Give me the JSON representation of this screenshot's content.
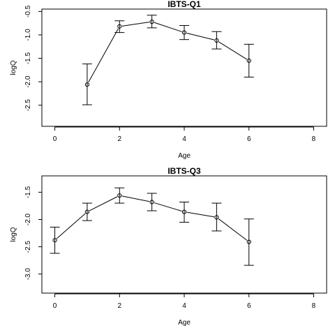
{
  "chart_data": [
    {
      "type": "line",
      "title": "IBTS-Q1",
      "xlabel": "Age",
      "ylabel": "logQ",
      "xlim": [
        -0.4,
        8.4
      ],
      "ylim": [
        -2.95,
        -0.45
      ],
      "x_ticks": [
        "0",
        "2",
        "4",
        "6",
        "8"
      ],
      "y_ticks": [
        "-2.5",
        "-2.0",
        "-1.5",
        "-1.0",
        "-0.5"
      ],
      "series": [
        {
          "x": [
            1,
            2,
            3,
            4,
            5,
            6
          ],
          "y": [
            -2.06,
            -0.82,
            -0.72,
            -0.95,
            -1.12,
            -1.55
          ],
          "lower": [
            -2.49,
            -0.95,
            -0.85,
            -1.1,
            -1.3,
            -1.9
          ],
          "upper": [
            -1.62,
            -0.7,
            -0.58,
            -0.8,
            -0.93,
            -1.2
          ]
        }
      ],
      "grid": false
    },
    {
      "type": "line",
      "title": "IBTS-Q3",
      "xlabel": "Age",
      "ylabel": "logQ",
      "xlim": [
        -0.4,
        8.4
      ],
      "ylim": [
        -3.35,
        -1.2
      ],
      "x_ticks": [
        "0",
        "2",
        "4",
        "6",
        "8"
      ],
      "y_ticks": [
        "-3.0",
        "-2.5",
        "-2.0",
        "-1.5"
      ],
      "series": [
        {
          "x": [
            0,
            1,
            2,
            3,
            4,
            5,
            6
          ],
          "y": [
            -2.38,
            -1.86,
            -1.56,
            -1.68,
            -1.86,
            -1.96,
            -2.41
          ],
          "lower": [
            -2.62,
            -2.02,
            -1.7,
            -1.84,
            -2.05,
            -2.21,
            -2.84
          ],
          "upper": [
            -2.14,
            -1.7,
            -1.42,
            -1.52,
            -1.68,
            -1.7,
            -1.99
          ]
        }
      ],
      "grid": false
    }
  ]
}
